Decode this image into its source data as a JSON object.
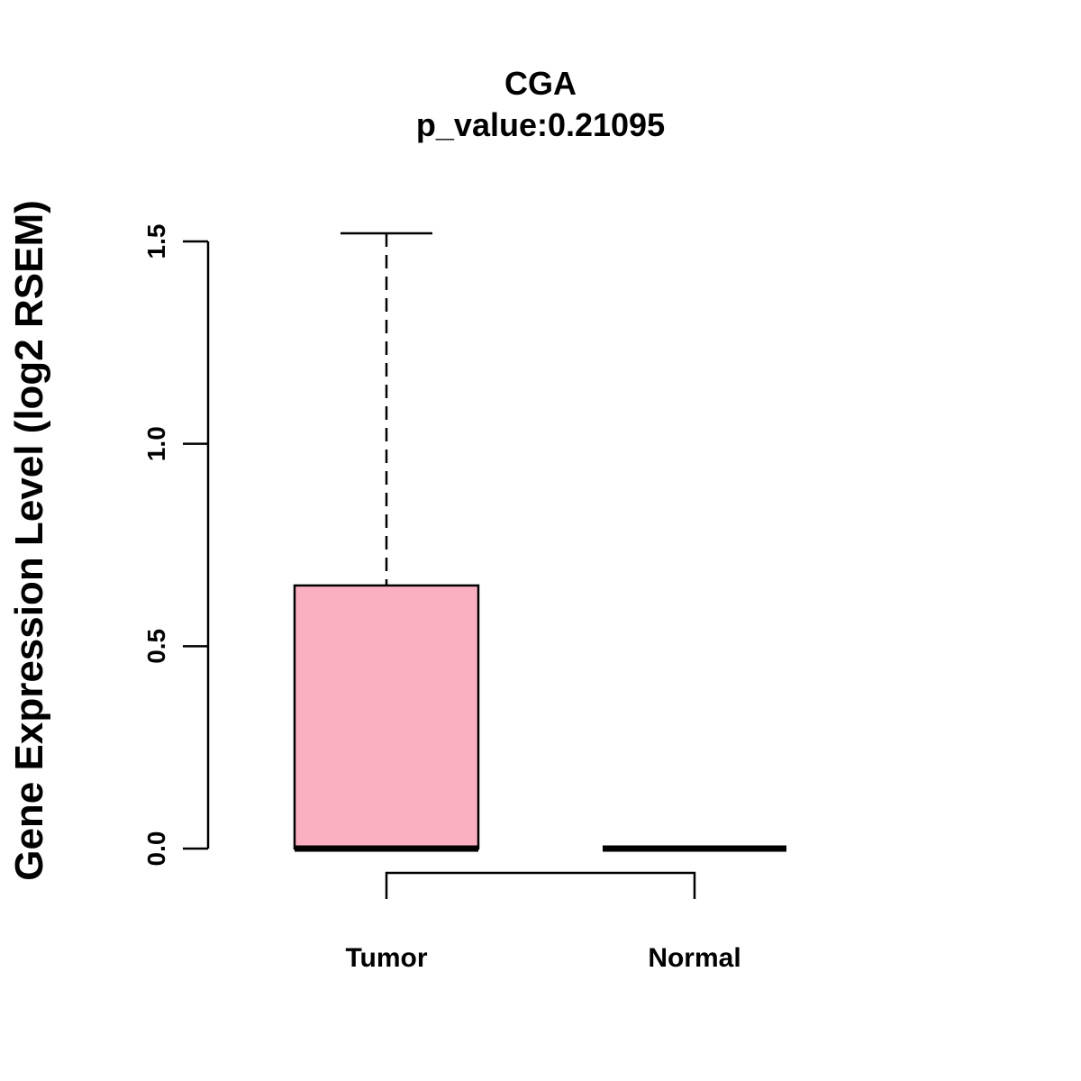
{
  "chart_data": {
    "type": "boxplot",
    "title": "CGA",
    "subtitle": "p_value:0.21095",
    "ylabel": "Gene Expression Level (log2 RSEM)",
    "xlabel": "",
    "ylim": [
      0,
      1.5
    ],
    "yticks": [
      {
        "value": 0.0,
        "label": "0.0"
      },
      {
        "value": 0.5,
        "label": "0.5"
      },
      {
        "value": 1.0,
        "label": "1.0"
      },
      {
        "value": 1.5,
        "label": "1.5"
      }
    ],
    "categories": [
      "Tumor",
      "Normal"
    ],
    "boxes": [
      {
        "name": "Tumor",
        "min": 0.0,
        "q1": 0.0,
        "median": 0.0,
        "q3": 0.65,
        "max": 1.52,
        "fill": "#fbb0c2"
      },
      {
        "name": "Normal",
        "min": 0.0,
        "q1": 0.0,
        "median": 0.0,
        "q3": 0.0,
        "max": 0.0,
        "fill": "#fbb0c2"
      }
    ],
    "comparison_bracket": {
      "from": "Tumor",
      "to": "Normal"
    },
    "colors": {
      "box_fill": "#fbb0c2",
      "stroke": "#000000",
      "background": "#ffffff"
    }
  }
}
